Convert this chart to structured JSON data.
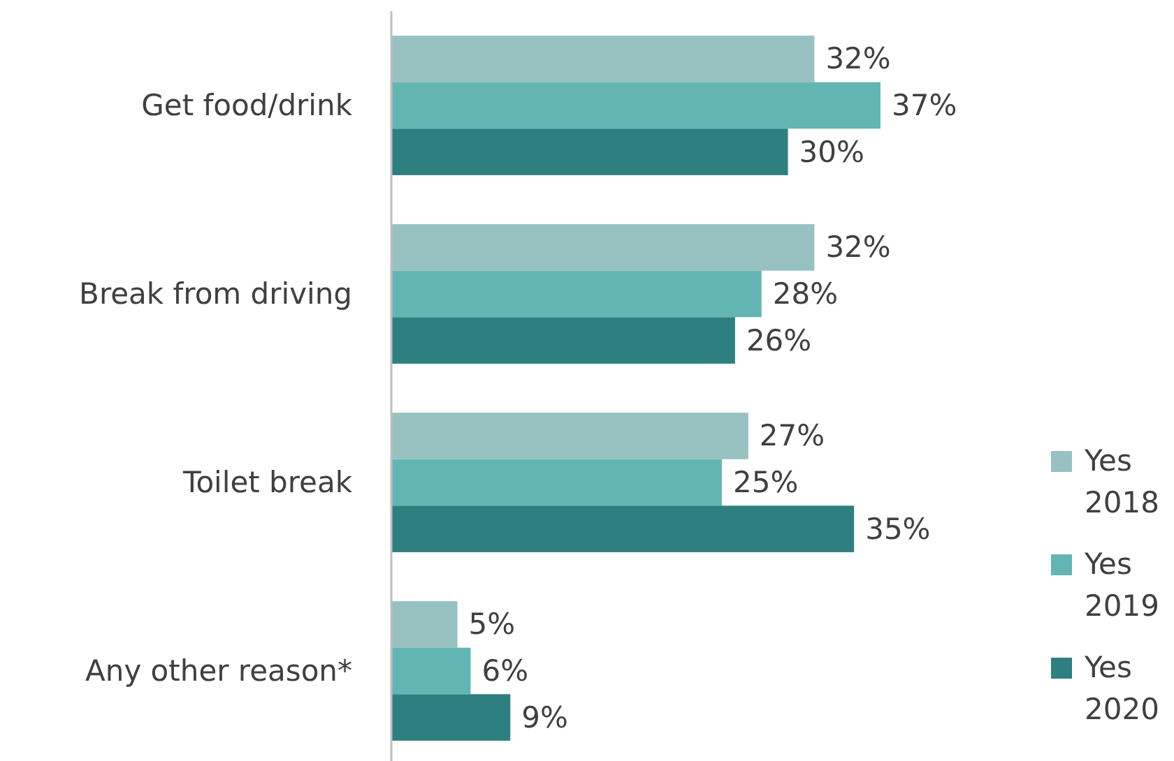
{
  "chart_data": {
    "type": "bar",
    "orientation": "horizontal",
    "categories": [
      "Get food/drink",
      "Break from driving",
      "Toilet break",
      "Any other reason*"
    ],
    "series": [
      {
        "name": "Yes 2018",
        "color": "#98c1c2",
        "values": [
          32,
          32,
          27,
          5
        ],
        "value_labels": [
          "32%",
          "32%",
          "27%",
          "5%"
        ]
      },
      {
        "name": "Yes 2019",
        "color": "#63b5b3",
        "values": [
          37,
          28,
          25,
          6
        ],
        "value_labels": [
          "37%",
          "28%",
          "25%",
          "6%"
        ]
      },
      {
        "name": "Yes 2020",
        "color": "#2e7f80",
        "values": [
          30,
          26,
          35,
          9
        ],
        "value_labels": [
          "30%",
          "26%",
          "35%",
          "9%"
        ]
      }
    ],
    "legend": "right"
  }
}
